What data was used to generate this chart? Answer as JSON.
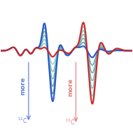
{
  "background_color": "#ffffff",
  "figsize": [
    1.9,
    1.89
  ],
  "dpi": 100,
  "blue_color": "#2255cc",
  "red_color": "#cc2222",
  "gray_colors": [
    "#4a8888",
    "#5a9898",
    "#6aacac",
    "#78b8b8",
    "#88c4c4"
  ],
  "blue_lw": 1.6,
  "red_lw": 1.6,
  "gray_lw": 1.0,
  "arrow_12C_color": "#3355cc",
  "arrow_13C_color": "#cc3333",
  "xlim": [
    -1,
    11
  ],
  "ylim": [
    -4.5,
    2.8
  ]
}
